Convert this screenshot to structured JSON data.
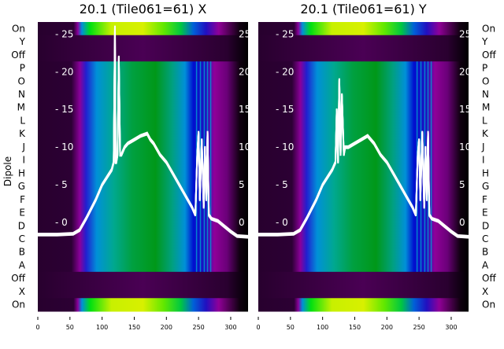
{
  "chart_data": [
    {
      "type": "heatmap",
      "title": "20.1 (Tile061=61) X",
      "ylabel": "Dipole",
      "row_labels": [
        "On",
        "Y",
        "Off",
        "P",
        "O",
        "N",
        "M",
        "L",
        "K",
        "J",
        "I",
        "H",
        "G",
        "F",
        "E",
        "D",
        "C",
        "B",
        "A",
        "Off",
        "X",
        "On"
      ],
      "x_ticks": [
        0,
        50,
        100,
        150,
        200,
        250,
        300
      ],
      "xlim": [
        0,
        327
      ],
      "overlay_yticks": [
        0,
        5,
        10,
        15,
        20,
        25
      ],
      "overlay_ylim": [
        -11.8,
        26.6
      ],
      "overlay_line": {
        "x": [
          0,
          30,
          55,
          65,
          75,
          90,
          100,
          115,
          118,
          120,
          121,
          122,
          124,
          126,
          128,
          130,
          135,
          140,
          150,
          160,
          170,
          175,
          180,
          190,
          200,
          210,
          220,
          230,
          240,
          245,
          248,
          250,
          252,
          255,
          258,
          260,
          262,
          264,
          266,
          270,
          280,
          290,
          300,
          310,
          327
        ],
        "y": [
          -1.6,
          -1.6,
          -1.5,
          -1,
          0.5,
          3,
          5,
          7,
          8,
          26,
          8,
          8,
          9,
          22,
          9,
          9,
          10,
          10.5,
          11,
          11.5,
          11.8,
          11,
          10.5,
          9,
          8,
          6.5,
          5,
          3.5,
          2,
          1,
          9,
          12,
          3,
          11,
          2,
          10,
          3,
          12,
          1,
          0.5,
          0.2,
          -0.5,
          -1.2,
          -1.8,
          -1.9
        ]
      }
    },
    {
      "type": "heatmap",
      "title": "20.1 (Tile061=61) Y",
      "row_labels": [
        "On",
        "Y",
        "Off",
        "P",
        "O",
        "N",
        "M",
        "L",
        "K",
        "J",
        "I",
        "H",
        "G",
        "F",
        "E",
        "D",
        "C",
        "B",
        "A",
        "Off",
        "X",
        "On"
      ],
      "x_ticks": [
        0,
        50,
        100,
        150,
        200,
        250,
        300
      ],
      "xlim": [
        0,
        327
      ],
      "overlay_yticks": [
        0,
        5,
        10,
        15,
        20,
        25
      ],
      "overlay_ylim": [
        -11.8,
        26.6
      ],
      "overlay_line": {
        "x": [
          0,
          30,
          55,
          65,
          75,
          90,
          100,
          115,
          120,
          122,
          124,
          126,
          128,
          130,
          133,
          135,
          140,
          150,
          160,
          170,
          180,
          190,
          200,
          210,
          220,
          230,
          240,
          245,
          248,
          250,
          252,
          255,
          258,
          260,
          262,
          264,
          266,
          270,
          280,
          290,
          300,
          310,
          327
        ],
        "y": [
          -1.6,
          -1.6,
          -1.5,
          -1,
          0.5,
          3,
          5,
          7,
          8,
          15,
          8,
          19,
          9,
          17,
          9,
          10,
          10,
          10.5,
          11,
          11.5,
          10.5,
          9,
          8,
          6.5,
          5,
          3.5,
          2,
          1,
          9,
          11,
          3,
          12,
          2,
          10,
          3,
          12,
          1,
          0.5,
          0.2,
          -0.5,
          -1.2,
          -1.8,
          -1.9
        ]
      }
    }
  ]
}
